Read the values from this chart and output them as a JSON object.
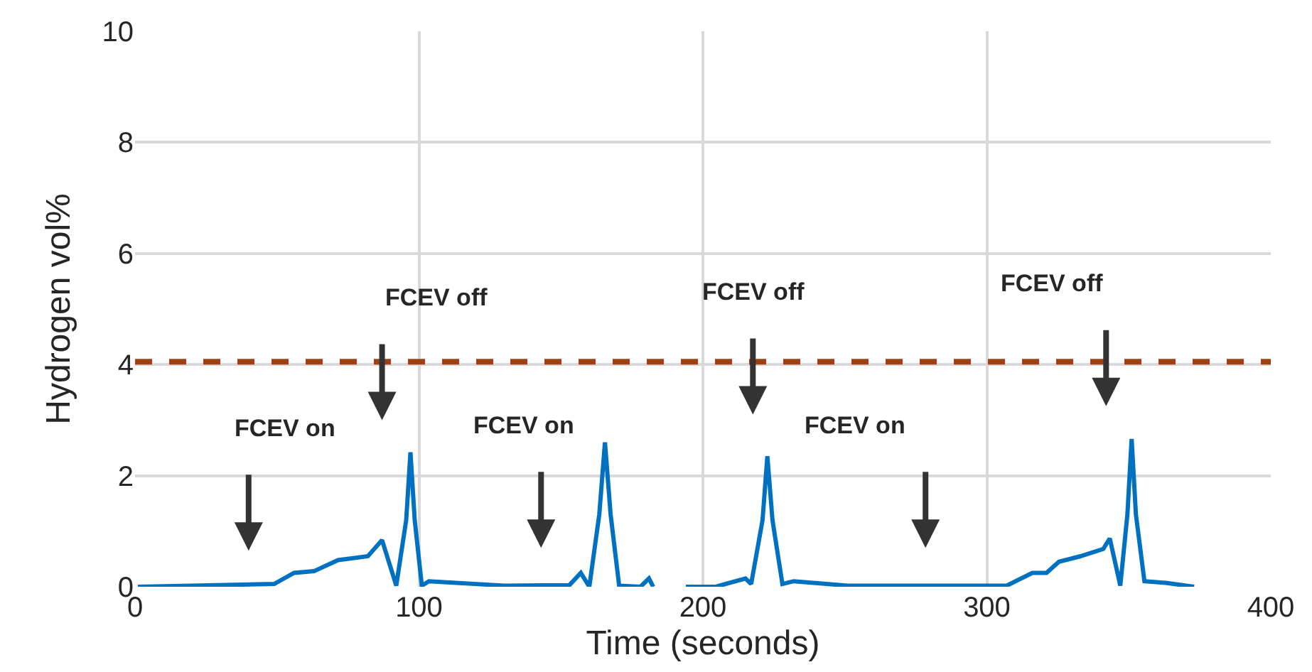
{
  "chart_data": {
    "type": "line",
    "xlabel": "Time (seconds)",
    "ylabel": "Hydrogen vol%",
    "x": [
      1,
      20,
      49,
      56,
      63,
      71.5,
      82,
      87,
      92,
      95.5,
      97,
      98.5,
      101,
      103.5,
      130,
      153,
      157,
      160,
      163.5,
      165.5,
      167.5,
      170.5,
      178,
      181,
      182.5,
      188,
      194,
      199,
      204.5,
      215,
      217,
      221,
      222.7,
      224.5,
      228,
      232,
      251,
      265.5,
      290,
      307,
      316,
      321,
      325.4,
      333,
      341,
      343.3,
      347,
      349.5,
      351,
      352.5,
      355.5,
      363,
      373
    ],
    "series": [
      {
        "color": "#0070c0",
        "values": [
          0,
          0.02,
          0.05,
          0.25,
          0.28,
          0.48,
          0.55,
          0.84,
          0.02,
          1.2,
          2.42,
          1.2,
          0.02,
          0.1,
          0.02,
          0.03,
          0.25,
          0,
          1.3,
          2.6,
          1.3,
          0.02,
          0,
          0.15,
          0,
          null,
          0,
          0,
          0,
          0.15,
          0.05,
          1.2,
          2.35,
          1.2,
          0.05,
          0.1,
          0.02,
          0.02,
          0.02,
          0.02,
          0.25,
          0.25,
          0.45,
          0.55,
          0.68,
          0.87,
          0.02,
          1.3,
          2.66,
          1.3,
          0.1,
          0.07,
          0
        ]
      }
    ],
    "xlim": [
      0,
      400
    ],
    "xticks": [
      0,
      100,
      200,
      300,
      400
    ],
    "ylim": [
      0,
      10
    ],
    "yticks": [
      0,
      2,
      4,
      6,
      8,
      10
    ],
    "grid": true,
    "legend": false,
    "marker": "none",
    "line_style": "solid",
    "ref_lines": [
      {
        "axis": "y",
        "value": 4.05,
        "color": "#a0420f",
        "line_style": "dashed"
      }
    ],
    "annotations": [
      "FCEV on",
      "FCEV off",
      "FCEV on",
      "FCEV off",
      "FCEV on",
      "FCEV off"
    ]
  }
}
